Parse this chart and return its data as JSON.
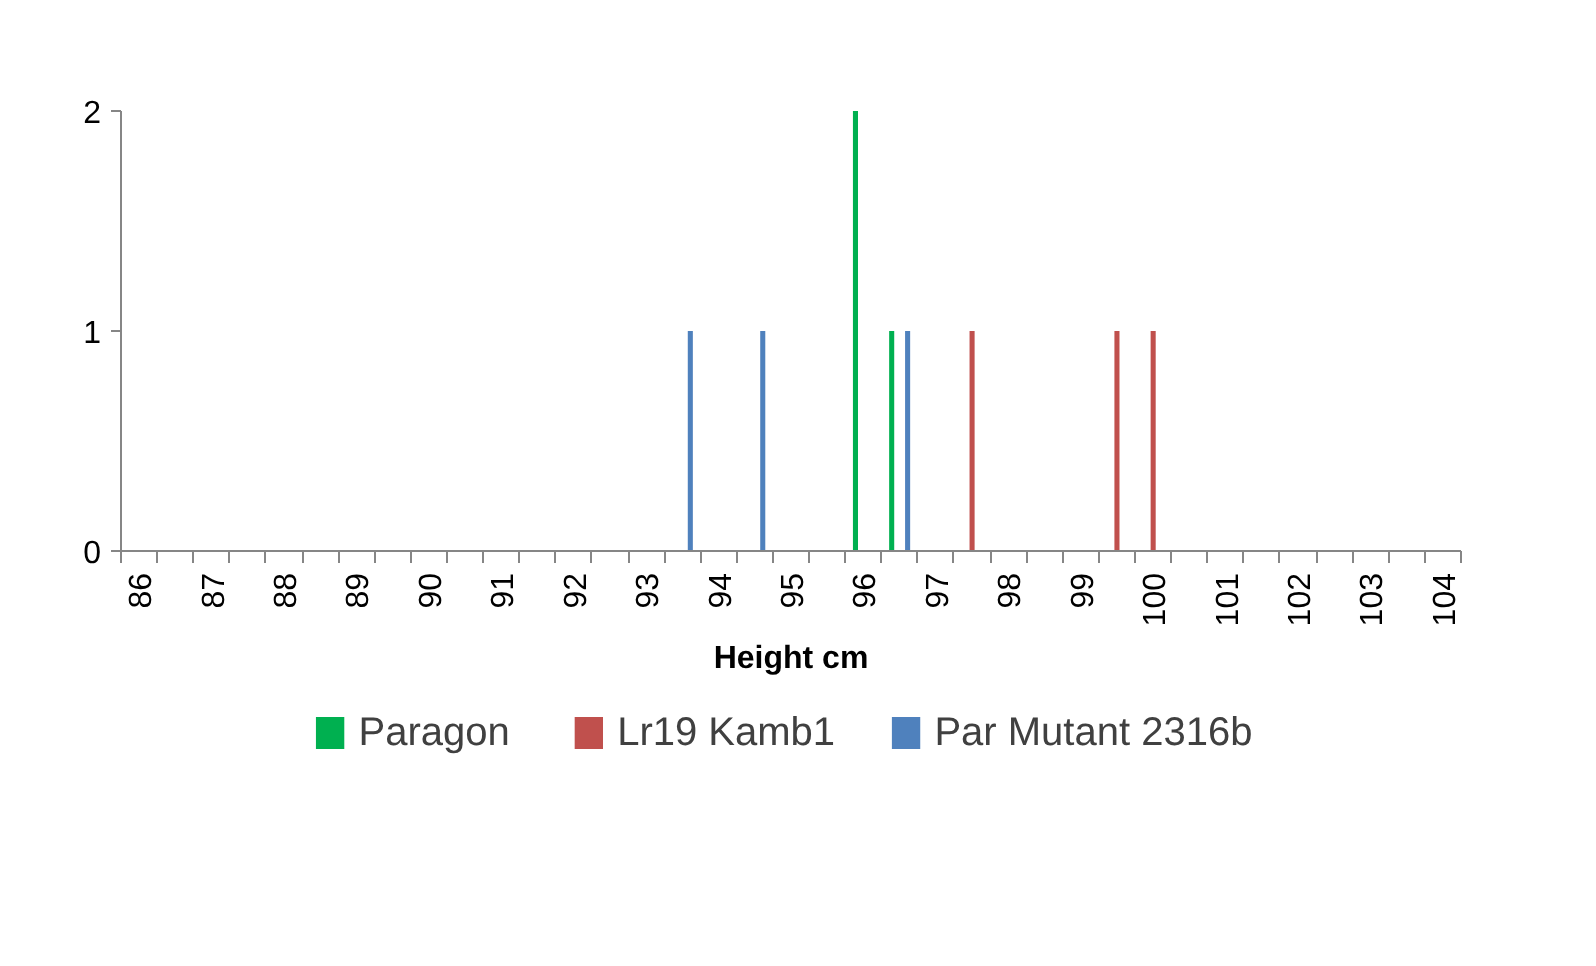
{
  "chart_data": {
    "type": "bar",
    "xlabel": "Height cm",
    "xlim": [
      85.75,
      104.25
    ],
    "xticks": [
      86,
      87,
      88,
      89,
      90,
      91,
      92,
      93,
      94,
      95,
      96,
      97,
      98,
      99,
      100,
      101,
      102,
      103,
      104
    ],
    "ylim": [
      0,
      2
    ],
    "yticks": [
      0,
      1,
      2
    ],
    "grid": false,
    "legend": "bottom",
    "series": [
      {
        "name": "Paragon",
        "color": "#00b050",
        "x": [
          96,
          96.5
        ],
        "values": [
          2,
          1
        ]
      },
      {
        "name": "Lr19 Kamb1",
        "color": "#c0504d",
        "x": [
          97.5,
          99.5,
          100
        ],
        "values": [
          1,
          1,
          1
        ]
      },
      {
        "name": "Par Mutant 2316b",
        "color": "#4f81bd",
        "x": [
          93.5,
          94.5,
          96.5
        ],
        "values": [
          1,
          1,
          1
        ]
      }
    ]
  }
}
